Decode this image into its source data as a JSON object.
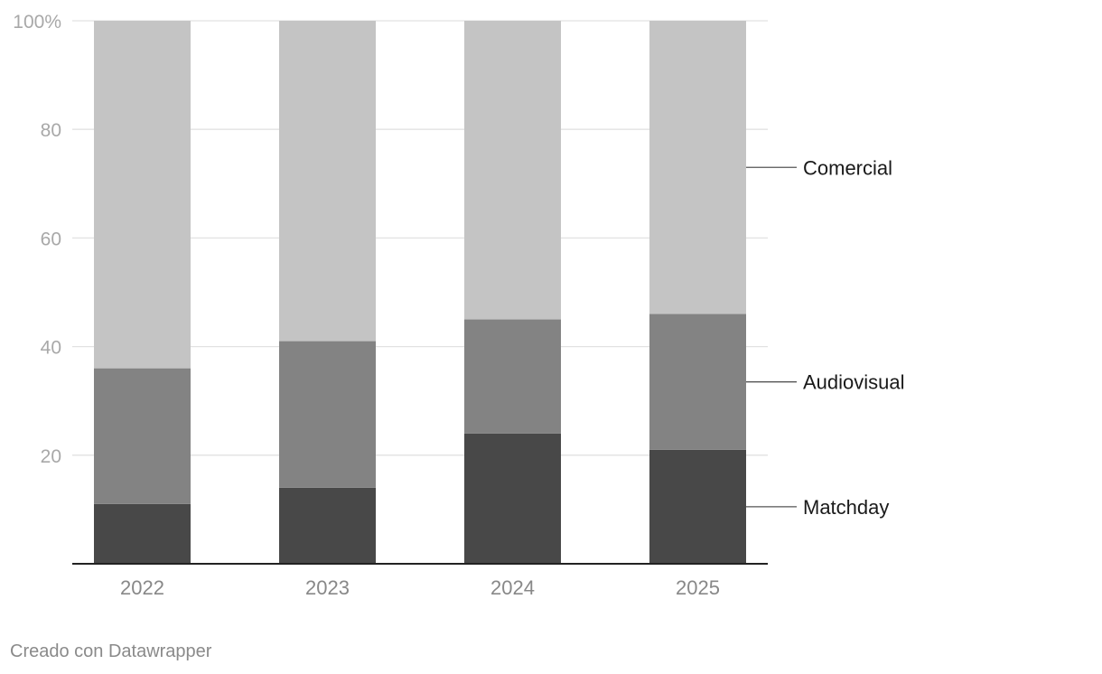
{
  "chart_data": {
    "type": "bar",
    "stacked": true,
    "categories": [
      "2022",
      "2023",
      "2024",
      "2025"
    ],
    "series": [
      {
        "name": "Matchday",
        "color": "#484848",
        "values": [
          11,
          14,
          24,
          21
        ]
      },
      {
        "name": "Audiovisual",
        "color": "#838383",
        "values": [
          25,
          27,
          21,
          25
        ]
      },
      {
        "name": "Comercial",
        "color": "#c4c4c4",
        "values": [
          64,
          59,
          55,
          54
        ]
      }
    ],
    "ylim": [
      0,
      100
    ],
    "yticks": [
      {
        "value": 20,
        "label": "20"
      },
      {
        "value": 40,
        "label": "40"
      },
      {
        "value": 60,
        "label": "60"
      },
      {
        "value": 80,
        "label": "80"
      },
      {
        "value": 100,
        "label": "100%"
      }
    ],
    "grid": true,
    "legend_placement": "right, inline labels"
  },
  "footer": {
    "credit": "Creado con Datawrapper"
  }
}
